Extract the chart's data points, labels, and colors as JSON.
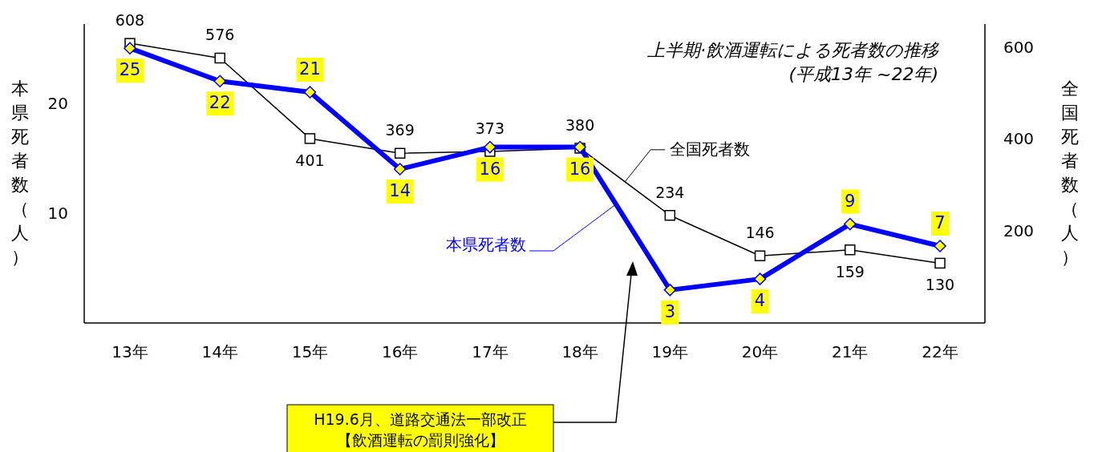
{
  "chart_data": {
    "type": "line",
    "title": "上半期·飲酒運転による死者数の推移",
    "subtitle": "(平成13年 ~22年)",
    "ylabel": "本県死者数（人）",
    "y2label": "全国死者数（人）",
    "categories": [
      "13年",
      "14年",
      "15年",
      "16年",
      "17年",
      "18年",
      "19年",
      "20年",
      "21年",
      "22年"
    ],
    "series": [
      {
        "name": "本県死者数",
        "color": "#0000ff",
        "marker": "diamond",
        "values": [
          25,
          22,
          21,
          14,
          16,
          16,
          3,
          4,
          9,
          7
        ]
      },
      {
        "name": "全国死者数",
        "color": "#000000",
        "marker": "square",
        "axis": "y2",
        "values": [
          608,
          576,
          401,
          369,
          373,
          380,
          234,
          146,
          159,
          130
        ]
      }
    ],
    "ylim": [
      0,
      27.2
    ],
    "yticks": [
      10,
      20
    ],
    "y2lim": [
      0,
      650
    ],
    "y2ticks": [
      200,
      400,
      600
    ],
    "data_labels": true,
    "grid": false,
    "annotations": [
      "H19.6月、道路交通法一部改正",
      "【飲酒運転の罰則強化】"
    ]
  }
}
